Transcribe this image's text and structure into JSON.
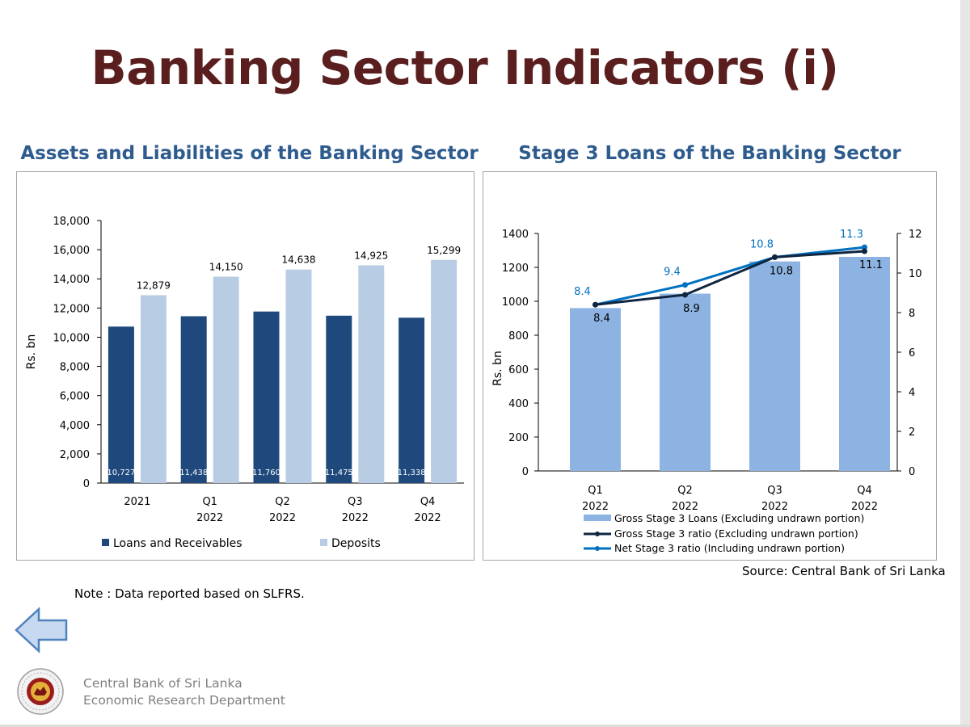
{
  "page": {
    "title": "Banking Sector Indicators (i)",
    "note": "Note : Data reported based on SLFRS.",
    "source": "Source: Central Bank of Sri Lanka",
    "footer_line1": "Central Bank of Sri Lanka",
    "footer_line2": "Economic Research Department",
    "back_icon": "left-arrow-icon",
    "logo_icon": "central-bank-seal-icon"
  },
  "chart_data": [
    {
      "type": "bar",
      "title": "Assets and Liabilities of the Banking Sector",
      "ylabel": "Rs. bn",
      "ylim": [
        0,
        18000
      ],
      "yticks": [
        "0",
        "2,000",
        "4,000",
        "6,000",
        "8,000",
        "10,000",
        "12,000",
        "14,000",
        "16,000",
        "18,000"
      ],
      "categories": [
        [
          "2021",
          ""
        ],
        [
          "Q1",
          "2022"
        ],
        [
          "Q2",
          "2022"
        ],
        [
          "Q3",
          "2022"
        ],
        [
          "Q4",
          "2022"
        ]
      ],
      "series": [
        {
          "name": "Loans and Receivables",
          "color": "#1f497d",
          "values": [
            10727,
            11438,
            11760,
            11475,
            11338
          ],
          "labels": [
            "10,727",
            "11,438",
            "11,760",
            "11,475",
            "11,338"
          ]
        },
        {
          "name": "Deposits",
          "color": "#b8cce4",
          "values": [
            12879,
            14150,
            14638,
            14925,
            15299
          ],
          "labels": [
            "12,879",
            "14,150",
            "14,638",
            "14,925",
            "15,299"
          ]
        }
      ],
      "legend": "bottom"
    },
    {
      "type": "bar+line",
      "title": "Stage 3 Loans of the Banking Sector",
      "ylabel": "Rs. bn",
      "ylim": [
        0,
        1400
      ],
      "yticks": [
        "0",
        "200",
        "400",
        "600",
        "800",
        "1000",
        "1200",
        "1400"
      ],
      "y2lim": [
        0,
        12
      ],
      "y2ticks": [
        "0",
        "2",
        "4",
        "6",
        "8",
        "10",
        "12"
      ],
      "categories": [
        [
          "Q1",
          "2022"
        ],
        [
          "Q2",
          "2022"
        ],
        [
          "Q3",
          "2022"
        ],
        [
          "Q4",
          "2022"
        ]
      ],
      "series": [
        {
          "name": "Gross Stage 3 Loans (Excluding undrawn portion)",
          "kind": "bar",
          "axis": "left",
          "color": "#8db3e2",
          "values": [
            960,
            1045,
            1235,
            1262
          ]
        },
        {
          "name": "Gross Stage 3 ratio (Excluding undrawn portion)",
          "kind": "line",
          "axis": "right",
          "color": "#10253f",
          "values": [
            8.4,
            8.9,
            10.8,
            11.1
          ],
          "labels": [
            "8.4",
            "8.9",
            "10.8",
            "11.1"
          ]
        },
        {
          "name": "Net Stage 3 ratio (Including undrawn portion)",
          "kind": "line",
          "axis": "right",
          "color": "#0070c0",
          "values": [
            8.4,
            9.4,
            10.8,
            11.3
          ],
          "labels": [
            "8.4",
            "9.4",
            "10.8",
            "11.3"
          ]
        }
      ],
      "legend": "bottom"
    }
  ]
}
